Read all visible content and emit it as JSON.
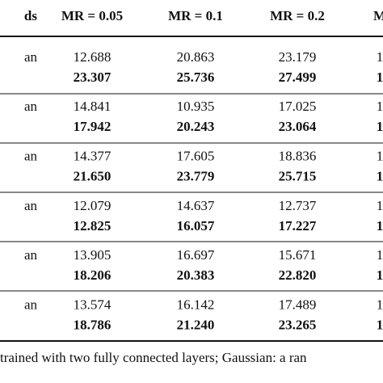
{
  "table": {
    "header": [
      "ds",
      "MR = 0.05",
      "MR = 0.1",
      "MR = 0.2",
      "M"
    ],
    "rows": [
      {
        "label": "an",
        "top": [
          "12.688",
          "20.863",
          "23.179",
          "1"
        ],
        "bottom": [
          "23.307",
          "25.736",
          "27.499",
          "1"
        ]
      },
      {
        "label": "an",
        "top": [
          "14.841",
          "10.935",
          "17.025",
          "1"
        ],
        "bottom": [
          "17.942",
          "20.243",
          "23.064",
          "1"
        ]
      },
      {
        "label": "an",
        "top": [
          "14.377",
          "17.605",
          "18.836",
          "1"
        ],
        "bottom": [
          "21.650",
          "23.779",
          "25.715",
          "1"
        ]
      },
      {
        "label": "an",
        "top": [
          "12.079",
          "14.637",
          "12.737",
          "1"
        ],
        "bottom": [
          "12.825",
          "16.057",
          "17.227",
          "1"
        ]
      },
      {
        "label": "an",
        "top": [
          "13.905",
          "16.697",
          "15.671",
          "1"
        ],
        "bottom": [
          "18.206",
          "20.383",
          "22.820",
          "1"
        ]
      },
      {
        "label": "an",
        "top": [
          "13.574",
          "16.142",
          "17.489",
          "1"
        ],
        "bottom": [
          "18.786",
          "21.240",
          "23.265",
          "1"
        ]
      }
    ]
  },
  "footnote": "trained with two fully connected layers; Gaussian: a ran"
}
